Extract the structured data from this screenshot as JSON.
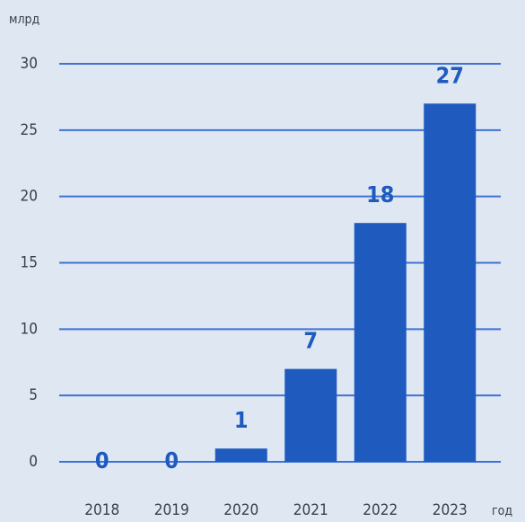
{
  "chart_data": {
    "type": "bar",
    "y_label": "млрд",
    "x_label": "год",
    "categories": [
      "2018",
      "2019",
      "2020",
      "2021",
      "2022",
      "2023"
    ],
    "values": [
      0,
      0,
      1,
      7,
      18,
      27
    ],
    "color": "#1f5bbf",
    "ylim": [
      0,
      30
    ],
    "yticks": [
      0,
      5,
      10,
      15,
      20,
      25,
      30
    ],
    "grid": true
  }
}
